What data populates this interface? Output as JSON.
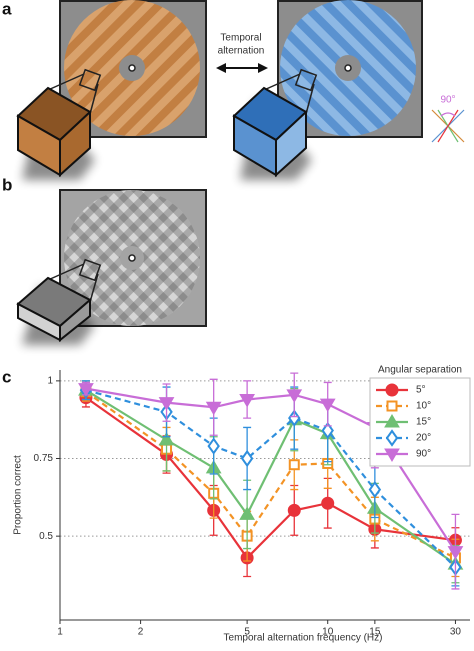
{
  "figure": {
    "panel_labels": [
      "a",
      "b",
      "c"
    ],
    "alternation_label": [
      "Temporal",
      "alternation"
    ],
    "angle_label": "90°"
  },
  "chart_data": {
    "type": "line",
    "x_label": "Temporal alternation frequency (Hz)",
    "y_label": "Proportion correct",
    "legend_title": "Angular separation",
    "legend": "upper right",
    "log_x": true,
    "grid": true,
    "x": [
      1.25,
      2.5,
      3.75,
      5,
      7.5,
      10,
      15,
      30
    ],
    "xlim": [
      1,
      34
    ],
    "xticks": [
      1,
      2,
      5,
      10,
      15,
      30
    ],
    "ylim": [
      0.23,
      1.035
    ],
    "yticks": [
      0.5,
      0.75,
      1
    ],
    "series": [
      {
        "name": "5°",
        "color": "#e8333a",
        "marker": "circle",
        "open": false,
        "dash": false,
        "values": [
          0.946,
          0.763,
          0.583,
          0.43,
          0.583,
          0.606,
          0.522,
          0.487
        ],
        "errors": [
          0.03,
          0.06,
          0.08,
          0.06,
          0.08,
          0.08,
          0.06,
          0.04
        ]
      },
      {
        "name": "10°",
        "color": "#f39325",
        "marker": "square",
        "open": true,
        "dash": true,
        "values": [
          0.965,
          0.78,
          0.638,
          0.5,
          0.73,
          0.734,
          0.555,
          0.43
        ],
        "errors": [
          0.03,
          0.07,
          0.08,
          0.08,
          0.08,
          0.08,
          0.07,
          0.06
        ]
      },
      {
        "name": "15°",
        "color": "#6fbf73",
        "marker": "triangle",
        "open": false,
        "dash": false,
        "values": [
          0.97,
          0.81,
          0.72,
          0.57,
          0.875,
          0.83,
          0.59,
          0.41
        ],
        "errors": [
          0.03,
          0.1,
          0.1,
          0.11,
          0.1,
          0.1,
          0.08,
          0.06
        ]
      },
      {
        "name": "20°",
        "color": "#2f8fdd",
        "marker": "diamond",
        "open": true,
        "dash": true,
        "values": [
          0.97,
          0.9,
          0.79,
          0.75,
          0.88,
          0.84,
          0.65,
          0.4
        ],
        "errors": [
          0.03,
          0.08,
          0.09,
          0.1,
          0.1,
          0.1,
          0.09,
          0.06
        ]
      },
      {
        "name": "90°",
        "color": "#c86dd7",
        "marker": "triangle-down",
        "open": false,
        "dash": false,
        "values": [
          0.975,
          0.93,
          0.915,
          0.94,
          0.955,
          0.925,
          0.85,
          0.45
        ],
        "errors": [
          0.02,
          0.06,
          0.09,
          0.06,
          0.07,
          0.07,
          0.13,
          0.12
        ]
      }
    ]
  }
}
